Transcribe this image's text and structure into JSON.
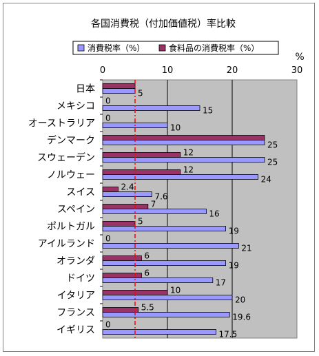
{
  "chart_data": {
    "type": "bar",
    "orientation": "horizontal",
    "title": "各国消費税（付加価値税）率比較",
    "unit_label": "%",
    "xlim": [
      0,
      30
    ],
    "x_ticks": [
      "0",
      "10",
      "20",
      "30"
    ],
    "reference_line": {
      "value": 5,
      "style": "dash-dot",
      "color": "#ff0000"
    },
    "grid": true,
    "legend_position": "top",
    "categories": [
      "日本",
      "メキシコ",
      "オーストラリア",
      "デンマーク",
      "スウェーデン",
      "ノルウェー",
      "スイス",
      "スペイン",
      "ポルトガル",
      "アイルランド",
      "オランダ",
      "ドイツ",
      "イタリア",
      "フランス",
      "イギリス"
    ],
    "series": [
      {
        "name": "消費税率（%）",
        "color": "#9999ff",
        "values": [
          5,
          15,
          10,
          25,
          25,
          24,
          7.6,
          16,
          19,
          21,
          19,
          17,
          20,
          19.6,
          17.5
        ],
        "labels": [
          "5",
          "15",
          "10",
          "25",
          "25",
          "24",
          "7.6",
          "16",
          "19",
          "21",
          "19",
          "17",
          "20",
          "19.6",
          "17.5"
        ]
      },
      {
        "name": "食料品の消費税率（%）",
        "color": "#993366",
        "values": [
          5,
          0,
          0,
          25,
          12,
          12,
          2.4,
          7,
          5,
          0,
          6,
          6,
          10,
          5.5,
          0
        ],
        "labels": [
          "",
          "0",
          "0",
          "",
          "12",
          "12",
          "2.4",
          "7",
          "5",
          "0",
          "6",
          "6",
          "10",
          "5.5",
          "0"
        ]
      }
    ]
  }
}
